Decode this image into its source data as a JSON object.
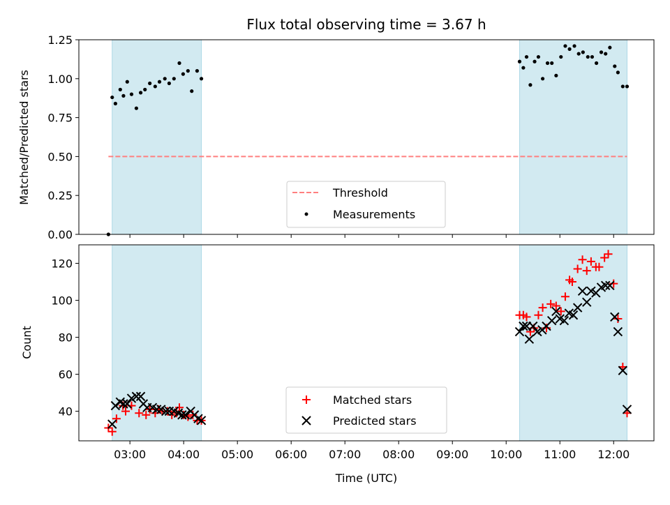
{
  "chart_data": [
    {
      "type": "scatter",
      "title": "Flux total observing time = 3.67 h",
      "xlabel": "",
      "ylabel": "Matched/Predicted stars",
      "ylim": [
        0,
        1.25
      ],
      "yticks": [
        "0.00",
        "0.25",
        "0.50",
        "0.75",
        "1.00",
        "1.25"
      ],
      "x_axis": "shared time axis (UTC hours)",
      "shaded_intervals": [
        [
          2.67,
          4.33
        ],
        [
          10.25,
          12.25
        ]
      ],
      "threshold": {
        "name": "Threshold",
        "value": 0.5,
        "x_range": [
          2.6,
          12.25
        ],
        "color": "#ff7f7f",
        "style": "dashed"
      },
      "series": [
        {
          "name": "Measurements",
          "color": "#000000",
          "x": [
            2.6,
            2.67,
            2.73,
            2.82,
            2.88,
            2.95,
            3.03,
            3.12,
            3.2,
            3.28,
            3.37,
            3.47,
            3.55,
            3.65,
            3.73,
            3.82,
            3.92,
            3.99,
            4.08,
            4.15,
            4.25,
            4.33,
            10.25,
            10.32,
            10.38,
            10.45,
            10.53,
            10.6,
            10.68,
            10.77,
            10.85,
            10.93,
            11.02,
            11.1,
            11.18,
            11.27,
            11.35,
            11.43,
            11.52,
            11.6,
            11.68,
            11.77,
            11.85,
            11.93,
            12.02,
            12.08,
            12.17,
            12.25
          ],
          "y": [
            0.0,
            0.88,
            0.84,
            0.93,
            0.89,
            0.98,
            0.9,
            0.81,
            0.91,
            0.93,
            0.97,
            0.95,
            0.98,
            1.0,
            0.97,
            1.0,
            1.1,
            1.03,
            1.05,
            0.92,
            1.05,
            1.0,
            1.11,
            1.07,
            1.14,
            0.96,
            1.11,
            1.14,
            1.0,
            1.1,
            1.1,
            1.02,
            1.14,
            1.21,
            1.19,
            1.21,
            1.16,
            1.17,
            1.14,
            1.14,
            1.1,
            1.17,
            1.16,
            1.2,
            1.08,
            1.04,
            0.95,
            0.95
          ]
        }
      ],
      "legend": {
        "placement": "lower-center",
        "entries": [
          "Threshold",
          "Measurements"
        ]
      }
    },
    {
      "type": "scatter",
      "title": "",
      "xlabel": "Time (UTC)",
      "ylabel": "Count",
      "ylim": [
        24,
        130
      ],
      "yticks": [
        "40",
        "60",
        "80",
        "100",
        "120"
      ],
      "xlim": [
        2.05,
        12.75
      ],
      "xticks": [
        "03:00",
        "04:00",
        "05:00",
        "06:00",
        "07:00",
        "08:00",
        "09:00",
        "10:00",
        "11:00",
        "12:00"
      ],
      "shaded_intervals": [
        [
          2.67,
          4.33
        ],
        [
          10.25,
          12.25
        ]
      ],
      "series": [
        {
          "name": "Matched stars",
          "color": "#ff0000",
          "marker": "plus",
          "x": [
            2.6,
            2.67,
            2.75,
            2.87,
            2.92,
            3.03,
            3.17,
            3.3,
            3.37,
            3.47,
            3.53,
            3.6,
            3.7,
            3.78,
            3.87,
            3.92,
            4.0,
            4.08,
            4.17,
            4.25,
            4.33,
            10.25,
            10.32,
            10.38,
            10.45,
            10.52,
            10.6,
            10.68,
            10.75,
            10.83,
            10.93,
            11.02,
            11.1,
            11.18,
            11.23,
            11.33,
            11.42,
            11.5,
            11.58,
            11.67,
            11.73,
            11.83,
            11.9,
            12.0,
            12.08,
            12.17,
            12.25
          ],
          "y": [
            31,
            29,
            36,
            43,
            40,
            43,
            39,
            38,
            41,
            39,
            41,
            40,
            40,
            38,
            39,
            42,
            38,
            37,
            38,
            35,
            35,
            92,
            92,
            91,
            83,
            85,
            92,
            96,
            85,
            98,
            97,
            94,
            102,
            111,
            110,
            117,
            122,
            116,
            121,
            118,
            118,
            123,
            125,
            109,
            90,
            64,
            39
          ]
        },
        {
          "name": "Predicted stars",
          "color": "#000000",
          "marker": "x",
          "x": [
            2.67,
            2.73,
            2.82,
            2.88,
            2.95,
            3.03,
            3.12,
            3.2,
            3.25,
            3.32,
            3.42,
            3.5,
            3.58,
            3.67,
            3.73,
            3.82,
            3.9,
            3.97,
            4.03,
            4.13,
            4.2,
            4.27,
            4.33,
            10.25,
            10.32,
            10.38,
            10.43,
            10.5,
            10.58,
            10.67,
            10.75,
            10.85,
            10.93,
            11.0,
            11.08,
            11.17,
            11.25,
            11.33,
            11.42,
            11.5,
            11.58,
            11.67,
            11.77,
            11.85,
            11.93,
            12.02,
            12.08,
            12.17,
            12.25
          ],
          "y": [
            33,
            43,
            45,
            44,
            44,
            47,
            48,
            48,
            44,
            42,
            42,
            41,
            41,
            40,
            40,
            40,
            39,
            38,
            38,
            40,
            38,
            36,
            35,
            83,
            86,
            86,
            79,
            86,
            83,
            84,
            86,
            89,
            94,
            90,
            89,
            93,
            92,
            96,
            105,
            99,
            105,
            104,
            107,
            108,
            108,
            91,
            83,
            62,
            41
          ]
        }
      ],
      "legend": {
        "placement": "lower-center",
        "entries": [
          "Matched stars",
          "Predicted stars"
        ]
      }
    }
  ]
}
